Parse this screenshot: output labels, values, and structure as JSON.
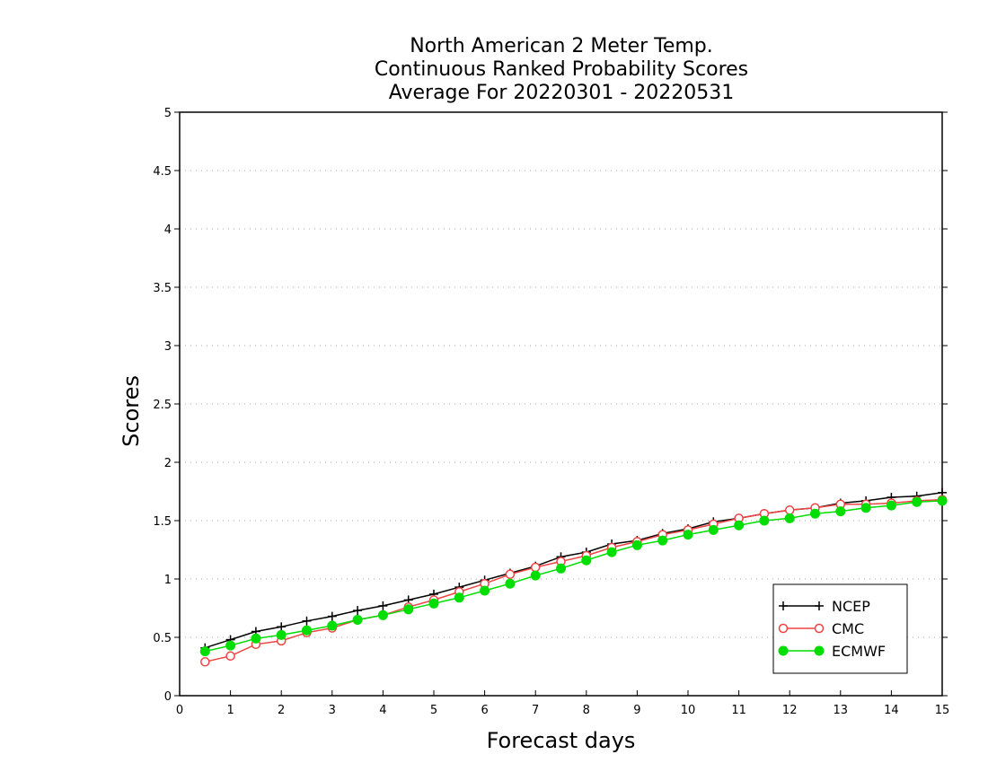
{
  "chart_data": {
    "type": "line",
    "title": [
      "North American 2 Meter Temp.",
      "Continuous Ranked Probability Scores",
      "Average For 20220301 - 20220531"
    ],
    "xlabel": "Forecast days",
    "ylabel": "Scores",
    "xlim": [
      0,
      15
    ],
    "ylim": [
      0,
      5
    ],
    "xticks": [
      "0",
      "1",
      "2",
      "3",
      "4",
      "5",
      "6",
      "7",
      "8",
      "9",
      "10",
      "11",
      "12",
      "13",
      "14",
      "15"
    ],
    "yticks": [
      "0",
      "0.5",
      "1",
      "1.5",
      "2",
      "2.5",
      "3",
      "3.5",
      "4",
      "4.5",
      "5"
    ],
    "grid": true,
    "legend_position": "bottom-right",
    "x": [
      0.5,
      1,
      1.5,
      2,
      2.5,
      3,
      3.5,
      4,
      4.5,
      5,
      5.5,
      6,
      6.5,
      7,
      7.5,
      8,
      8.5,
      9,
      9.5,
      10,
      10.5,
      11,
      11.5,
      12,
      12.5,
      13,
      13.5,
      14,
      14.5,
      15
    ],
    "series": [
      {
        "name": "NCEP",
        "color": "#000000",
        "marker": "plus",
        "values": [
          0.41,
          0.48,
          0.55,
          0.59,
          0.64,
          0.68,
          0.73,
          0.77,
          0.82,
          0.87,
          0.93,
          0.99,
          1.05,
          1.11,
          1.19,
          1.23,
          1.3,
          1.33,
          1.39,
          1.43,
          1.49,
          1.52,
          1.56,
          1.59,
          1.61,
          1.65,
          1.67,
          1.7,
          1.71,
          1.74
        ]
      },
      {
        "name": "CMC",
        "color": "#ee4444",
        "marker": "open-circle",
        "values": [
          0.29,
          0.34,
          0.44,
          0.47,
          0.54,
          0.58,
          0.65,
          0.69,
          0.76,
          0.82,
          0.89,
          0.96,
          1.04,
          1.1,
          1.15,
          1.2,
          1.27,
          1.32,
          1.38,
          1.42,
          1.47,
          1.52,
          1.56,
          1.59,
          1.61,
          1.64,
          1.64,
          1.65,
          1.67,
          1.68
        ]
      },
      {
        "name": "ECMWF",
        "color": "#00dd00",
        "marker": "filled-circle",
        "values": [
          0.38,
          0.43,
          0.49,
          0.52,
          0.56,
          0.6,
          0.65,
          0.69,
          0.74,
          0.79,
          0.84,
          0.9,
          0.96,
          1.03,
          1.09,
          1.16,
          1.23,
          1.29,
          1.33,
          1.38,
          1.42,
          1.46,
          1.5,
          1.52,
          1.56,
          1.58,
          1.61,
          1.63,
          1.66,
          1.67
        ]
      }
    ]
  }
}
